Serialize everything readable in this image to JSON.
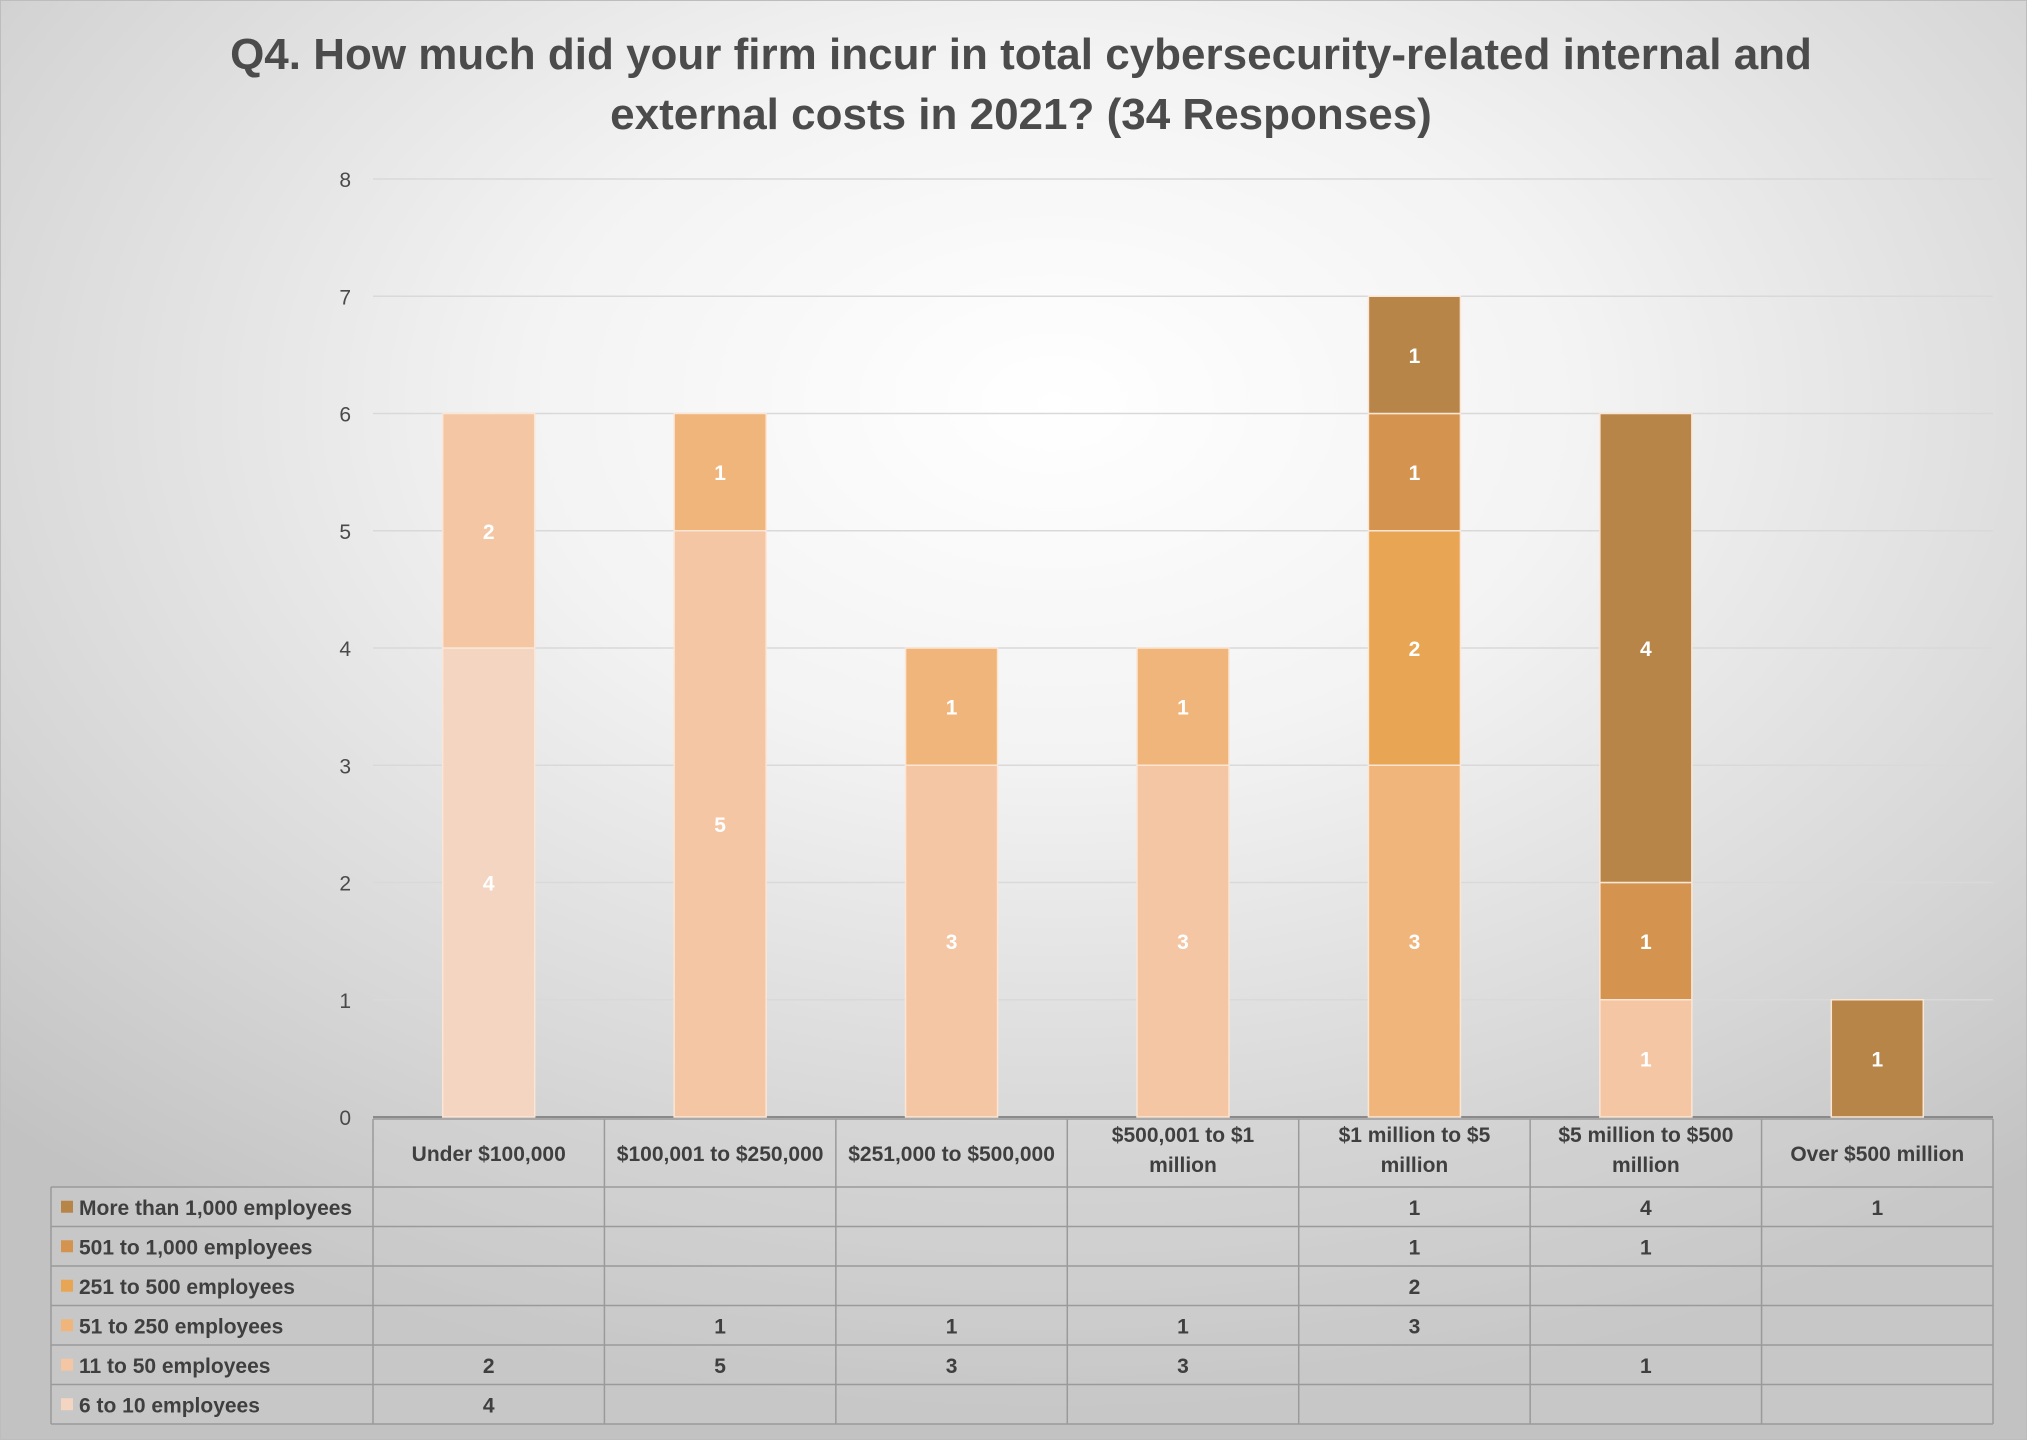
{
  "chart_data": {
    "type": "bar",
    "stacked": true,
    "title_line1": "Q4. How much did your firm incur in total cybersecurity-related internal and",
    "title_line2": "external costs in 2021? (34 Responses)",
    "xlabel": "",
    "ylabel": "",
    "ylim": [
      0,
      8
    ],
    "yticks": [
      0,
      1,
      2,
      3,
      4,
      5,
      6,
      7,
      8
    ],
    "grid": true,
    "legend": "data-table",
    "categories": [
      [
        "Under $100,000"
      ],
      [
        "$100,001 to $250,000"
      ],
      [
        "$251,000 to $500,000"
      ],
      [
        "$500,001 to $1",
        "million"
      ],
      [
        "$1 million to $5",
        "million"
      ],
      [
        "$5 million to $500",
        "million"
      ],
      [
        "Over $500 million"
      ]
    ],
    "series": [
      {
        "name": "6 to 10 employees",
        "color": "#f3d5c2",
        "values": [
          4,
          null,
          null,
          null,
          null,
          null,
          null
        ]
      },
      {
        "name": "11 to 50 employees",
        "color": "#f4c6a3",
        "values": [
          2,
          5,
          3,
          3,
          null,
          1,
          null
        ]
      },
      {
        "name": "51 to 250 employees",
        "color": "#f0b57a",
        "values": [
          null,
          1,
          1,
          1,
          3,
          null,
          null
        ]
      },
      {
        "name": "251 to 500 employees",
        "color": "#e8a654",
        "values": [
          null,
          null,
          null,
          null,
          2,
          null,
          null
        ]
      },
      {
        "name": "501 to 1,000 employees",
        "color": "#d49450",
        "values": [
          null,
          null,
          null,
          null,
          1,
          1,
          null
        ]
      },
      {
        "name": "More than 1,000 employees",
        "color": "#b88549",
        "values": [
          null,
          null,
          null,
          null,
          1,
          4,
          1
        ]
      }
    ]
  }
}
